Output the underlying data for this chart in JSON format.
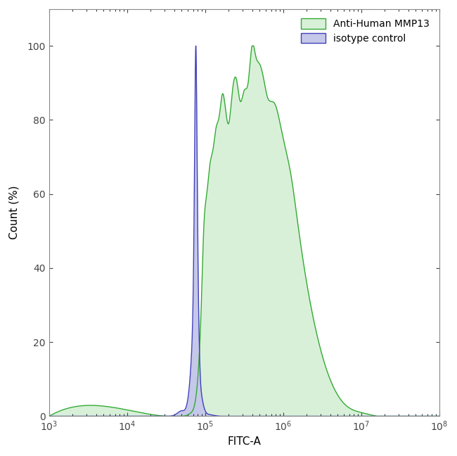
{
  "title": "",
  "xlabel": "FITC-A",
  "ylabel": "Count (%)",
  "xlim_log": [
    3,
    8
  ],
  "ylim": [
    0,
    110
  ],
  "yticks": [
    0,
    20,
    40,
    60,
    80,
    100
  ],
  "background_color": "#ffffff",
  "legend_labels": [
    "Anti-Human MMP13",
    "isotype control"
  ],
  "green_color": "#33aa33",
  "green_fill": "#d8f0d8",
  "blue_color": "#4040bb",
  "blue_fill": "#c5c8e8",
  "isotype_x": [
    3.0,
    4.2,
    4.5,
    4.62,
    4.7,
    4.78,
    4.82,
    4.86,
    4.88,
    4.9,
    4.93,
    4.96,
    5.0,
    5.05,
    5.12,
    5.2,
    5.3,
    5.4,
    5.5,
    6.0,
    8.0
  ],
  "isotype_y": [
    0,
    0,
    0,
    0.5,
    1.5,
    5,
    15,
    60,
    100,
    60,
    15,
    5,
    1.5,
    0.5,
    0.2,
    0,
    0,
    0,
    0,
    0,
    0
  ],
  "mmp13_x": [
    3.0,
    4.5,
    4.7,
    4.82,
    4.88,
    4.92,
    4.95,
    4.98,
    5.02,
    5.06,
    5.1,
    5.14,
    5.18,
    5.22,
    5.26,
    5.3,
    5.35,
    5.4,
    5.45,
    5.5,
    5.55,
    5.6,
    5.65,
    5.7,
    5.75,
    5.8,
    5.85,
    5.9,
    5.95,
    6.0,
    6.1,
    6.2,
    6.4,
    6.6,
    6.8,
    7.0,
    7.2,
    8.0
  ],
  "mmp13_y": [
    0,
    0,
    0,
    1,
    5,
    15,
    30,
    50,
    60,
    68,
    72,
    78,
    81,
    87,
    83,
    79,
    88,
    91,
    85,
    88,
    90,
    100,
    97,
    95,
    91,
    86,
    85,
    84,
    80,
    75,
    65,
    50,
    25,
    10,
    3,
    1,
    0,
    0
  ]
}
